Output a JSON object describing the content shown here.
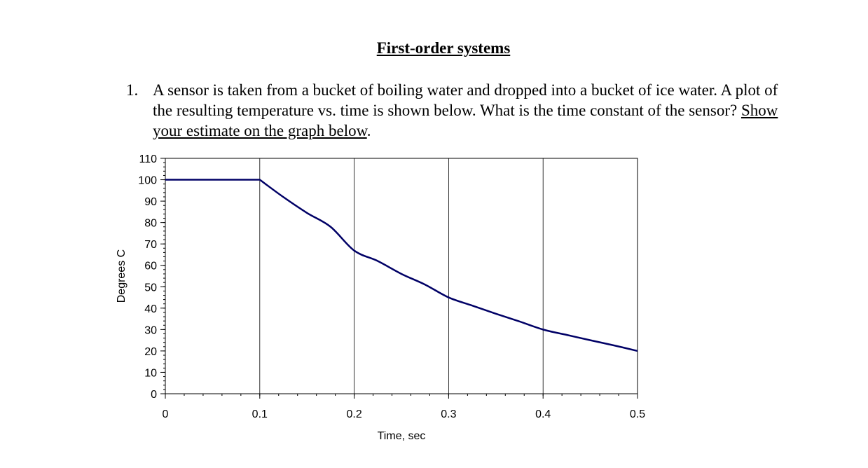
{
  "document": {
    "title": "First-order systems",
    "question": {
      "number": "1.",
      "text": "A sensor is taken from a bucket of boiling water and dropped into a bucket of ice water. A plot of the resulting temperature vs. time is shown below. What is the time constant of the sensor?",
      "instruction": "Show your estimate on the graph below",
      "instruction_end": "."
    }
  },
  "chart_data": {
    "type": "line",
    "title": "",
    "xlabel": "Time, sec",
    "ylabel": "Degrees C",
    "xlim": [
      0,
      0.5
    ],
    "ylim": [
      0,
      110
    ],
    "x_ticks": [
      0,
      0.1,
      0.2,
      0.3,
      0.4,
      0.5
    ],
    "x_tick_labels": [
      "0",
      "0.1",
      "0.2",
      "0.3",
      "0.4",
      "0.5"
    ],
    "y_ticks": [
      0,
      10,
      20,
      30,
      40,
      50,
      60,
      70,
      80,
      90,
      100,
      110
    ],
    "y_tick_labels": [
      "0",
      "10",
      "20",
      "30",
      "40",
      "50",
      "60",
      "70",
      "80",
      "90",
      "100",
      "110"
    ],
    "x_minor_step": 0.02,
    "y_minor_step": 2,
    "grid": "vertical-major",
    "legend": "none",
    "series": [
      {
        "color": "#000066",
        "x": [
          0,
          0.1,
          0.125,
          0.15,
          0.175,
          0.2,
          0.225,
          0.25,
          0.275,
          0.3,
          0.325,
          0.35,
          0.375,
          0.4,
          0.425,
          0.45,
          0.475,
          0.5
        ],
        "y": [
          100,
          100,
          91.9,
          84.5,
          78.0,
          66.9,
          62.0,
          56.0,
          51.0,
          45.0,
          41.2,
          37.4,
          33.8,
          30.0,
          27.5,
          25.0,
          22.6,
          20.0
        ]
      }
    ]
  }
}
